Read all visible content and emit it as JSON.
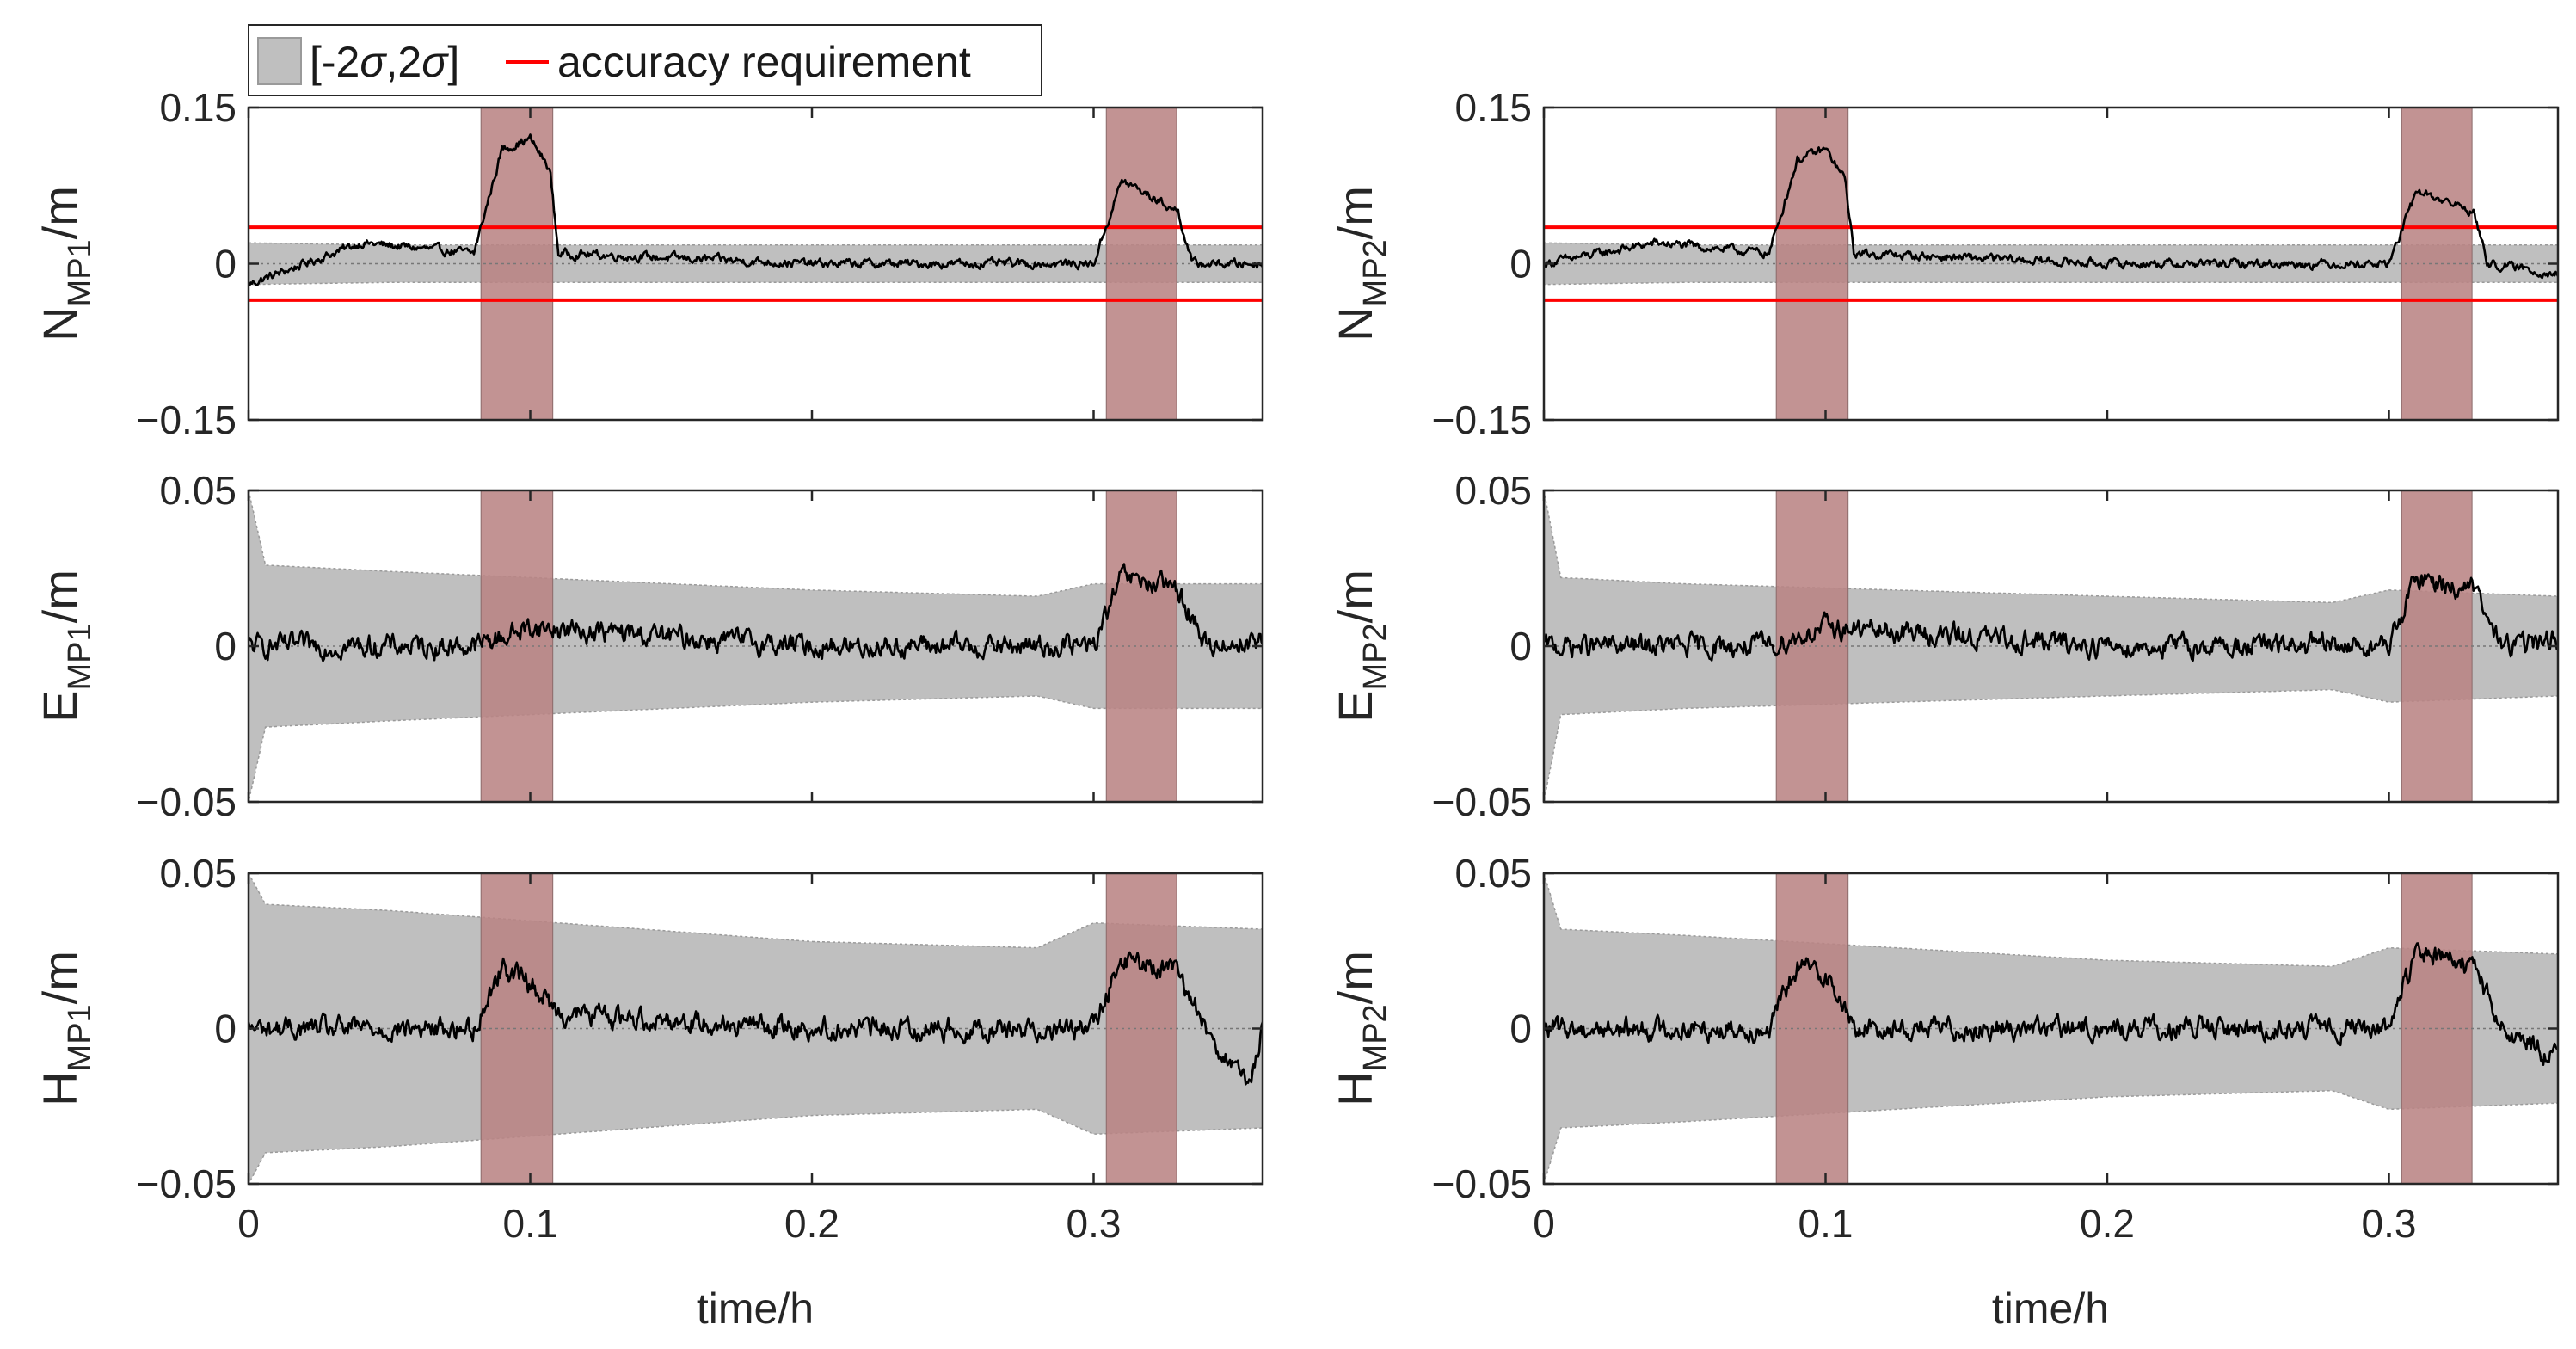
{
  "chart_data": {
    "type": "line",
    "layout": "3x2 subplot grid",
    "legend": {
      "entries": [
        {
          "label_pre": "[-2",
          "label_mid": "σ",
          "label_sep": ",2",
          "label_mid2": "σ",
          "label_post": "]",
          "kind": "band",
          "color": "#bfbfbf"
        },
        {
          "label": "accuracy requirement",
          "kind": "line",
          "color": "#ff0000"
        }
      ],
      "placement": "top-left"
    },
    "xlabel": "time/h",
    "xlim": [
      0,
      0.36
    ],
    "xticks": [
      "0",
      "0.1",
      "0.2",
      "0.3"
    ],
    "xtick_values": [
      0,
      0.1,
      0.2,
      0.3
    ],
    "highlight_intervals_h": [
      [
        0.0825,
        0.108
      ],
      [
        0.3045,
        0.3295
      ]
    ],
    "colors": {
      "band": "#bfbfbf",
      "highlight": "#b98484",
      "signal": "#000000",
      "requirement": "#ff0000"
    },
    "panels": [
      {
        "id": "N_MP1",
        "ylabel_main": "N",
        "ylabel_sub": "MP1",
        "ylabel_unit": "/m",
        "ylim": [
          -0.15,
          0.15
        ],
        "yticks": [
          "0.15",
          "0",
          "−0.15"
        ],
        "ytick_values": [
          0.15,
          0,
          -0.15
        ],
        "accuracy_requirement": [
          0.035,
          -0.035
        ],
        "sigma2_band": [
          [
            0.0,
            0.02
          ],
          [
            0.05,
            0.018
          ],
          [
            0.2,
            0.018
          ],
          [
            0.36,
            0.018
          ]
        ],
        "signal_keypoints": [
          [
            0,
            -0.02
          ],
          [
            0.04,
            0.02
          ],
          [
            0.08,
            0.01
          ],
          [
            0.09,
            0.11
          ],
          [
            0.1,
            0.12
          ],
          [
            0.107,
            0.09
          ],
          [
            0.11,
            0.01
          ],
          [
            0.2,
            0.0
          ],
          [
            0.3,
            0.0
          ],
          [
            0.31,
            0.08
          ],
          [
            0.33,
            0.05
          ],
          [
            0.335,
            0.0
          ],
          [
            0.36,
            0.0
          ]
        ]
      },
      {
        "id": "N_MP2",
        "ylabel_main": "N",
        "ylabel_sub": "MP2",
        "ylabel_unit": "/m",
        "ylim": [
          -0.15,
          0.15
        ],
        "yticks": [
          "0.15",
          "0",
          "−0.15"
        ],
        "ytick_values": [
          0.15,
          0,
          -0.15
        ],
        "accuracy_requirement": [
          0.035,
          -0.035
        ],
        "sigma2_band": [
          [
            0.0,
            0.02
          ],
          [
            0.05,
            0.018
          ],
          [
            0.2,
            0.018
          ],
          [
            0.36,
            0.018
          ]
        ],
        "signal_keypoints": [
          [
            0,
            0.0
          ],
          [
            0.04,
            0.02
          ],
          [
            0.08,
            0.01
          ],
          [
            0.09,
            0.1
          ],
          [
            0.1,
            0.11
          ],
          [
            0.107,
            0.08
          ],
          [
            0.11,
            0.01
          ],
          [
            0.2,
            0.0
          ],
          [
            0.3,
            0.0
          ],
          [
            0.31,
            0.07
          ],
          [
            0.33,
            0.05
          ],
          [
            0.335,
            0.0
          ],
          [
            0.36,
            -0.01
          ]
        ]
      },
      {
        "id": "E_MP1",
        "ylabel_main": "E",
        "ylabel_sub": "MP1",
        "ylabel_unit": "/m",
        "ylim": [
          -0.05,
          0.05
        ],
        "yticks": [
          "0.05",
          "0",
          "−0.05"
        ],
        "ytick_values": [
          0.05,
          0,
          -0.05
        ],
        "accuracy_requirement": null,
        "sigma2_band": [
          [
            0.0,
            0.05
          ],
          [
            0.006,
            0.026
          ],
          [
            0.05,
            0.024
          ],
          [
            0.2,
            0.018
          ],
          [
            0.28,
            0.016
          ],
          [
            0.3,
            0.02
          ],
          [
            0.36,
            0.02
          ]
        ],
        "signal_keypoints": [
          [
            0,
            0.0
          ],
          [
            0.08,
            0.0
          ],
          [
            0.1,
            0.006
          ],
          [
            0.2,
            0.0
          ],
          [
            0.3,
            0.0
          ],
          [
            0.31,
            0.022
          ],
          [
            0.33,
            0.018
          ],
          [
            0.34,
            0.0
          ],
          [
            0.36,
            0.002
          ]
        ]
      },
      {
        "id": "E_MP2",
        "ylabel_main": "E",
        "ylabel_sub": "MP2",
        "ylabel_unit": "/m",
        "ylim": [
          -0.05,
          0.05
        ],
        "yticks": [
          "0.05",
          "0",
          "−0.05"
        ],
        "ytick_values": [
          0.05,
          0,
          -0.05
        ],
        "accuracy_requirement": null,
        "sigma2_band": [
          [
            0.0,
            0.05
          ],
          [
            0.006,
            0.022
          ],
          [
            0.05,
            0.02
          ],
          [
            0.2,
            0.016
          ],
          [
            0.28,
            0.014
          ],
          [
            0.3,
            0.018
          ],
          [
            0.36,
            0.016
          ]
        ],
        "signal_keypoints": [
          [
            0,
            0.0
          ],
          [
            0.08,
            0.0
          ],
          [
            0.1,
            0.006
          ],
          [
            0.2,
            0.0
          ],
          [
            0.3,
            0.0
          ],
          [
            0.31,
            0.022
          ],
          [
            0.33,
            0.018
          ],
          [
            0.34,
            0.0
          ],
          [
            0.36,
            0.002
          ]
        ]
      },
      {
        "id": "H_MP1",
        "ylabel_main": "H",
        "ylabel_sub": "MP1",
        "ylabel_unit": "/m",
        "ylim": [
          -0.05,
          0.05
        ],
        "yticks": [
          "0.05",
          "0",
          "−0.05"
        ],
        "ytick_values": [
          0.05,
          0,
          -0.05
        ],
        "accuracy_requirement": null,
        "sigma2_band": [
          [
            0.0,
            0.05
          ],
          [
            0.006,
            0.04
          ],
          [
            0.05,
            0.038
          ],
          [
            0.2,
            0.028
          ],
          [
            0.28,
            0.026
          ],
          [
            0.3,
            0.034
          ],
          [
            0.36,
            0.032
          ]
        ],
        "signal_keypoints": [
          [
            0,
            0.0
          ],
          [
            0.08,
            0.0
          ],
          [
            0.09,
            0.02
          ],
          [
            0.1,
            0.015
          ],
          [
            0.11,
            0.005
          ],
          [
            0.2,
            0.0
          ],
          [
            0.3,
            0.0
          ],
          [
            0.31,
            0.022
          ],
          [
            0.33,
            0.018
          ],
          [
            0.34,
            0.0
          ],
          [
            0.355,
            -0.02
          ],
          [
            0.36,
            0.0
          ]
        ]
      },
      {
        "id": "H_MP2",
        "ylabel_main": "H",
        "ylabel_sub": "MP2",
        "ylabel_unit": "/m",
        "ylim": [
          -0.05,
          0.05
        ],
        "yticks": [
          "0.05",
          "0",
          "−0.05"
        ],
        "ytick_values": [
          0.05,
          0,
          -0.05
        ],
        "accuracy_requirement": null,
        "sigma2_band": [
          [
            0.0,
            0.05
          ],
          [
            0.006,
            0.032
          ],
          [
            0.05,
            0.03
          ],
          [
            0.2,
            0.022
          ],
          [
            0.28,
            0.02
          ],
          [
            0.3,
            0.026
          ],
          [
            0.36,
            0.024
          ]
        ],
        "signal_keypoints": [
          [
            0,
            0.0
          ],
          [
            0.08,
            0.0
          ],
          [
            0.09,
            0.02
          ],
          [
            0.1,
            0.018
          ],
          [
            0.11,
            0.0
          ],
          [
            0.2,
            0.0
          ],
          [
            0.3,
            0.0
          ],
          [
            0.31,
            0.025
          ],
          [
            0.33,
            0.02
          ],
          [
            0.34,
            0.0
          ],
          [
            0.36,
            -0.01
          ]
        ]
      }
    ]
  }
}
